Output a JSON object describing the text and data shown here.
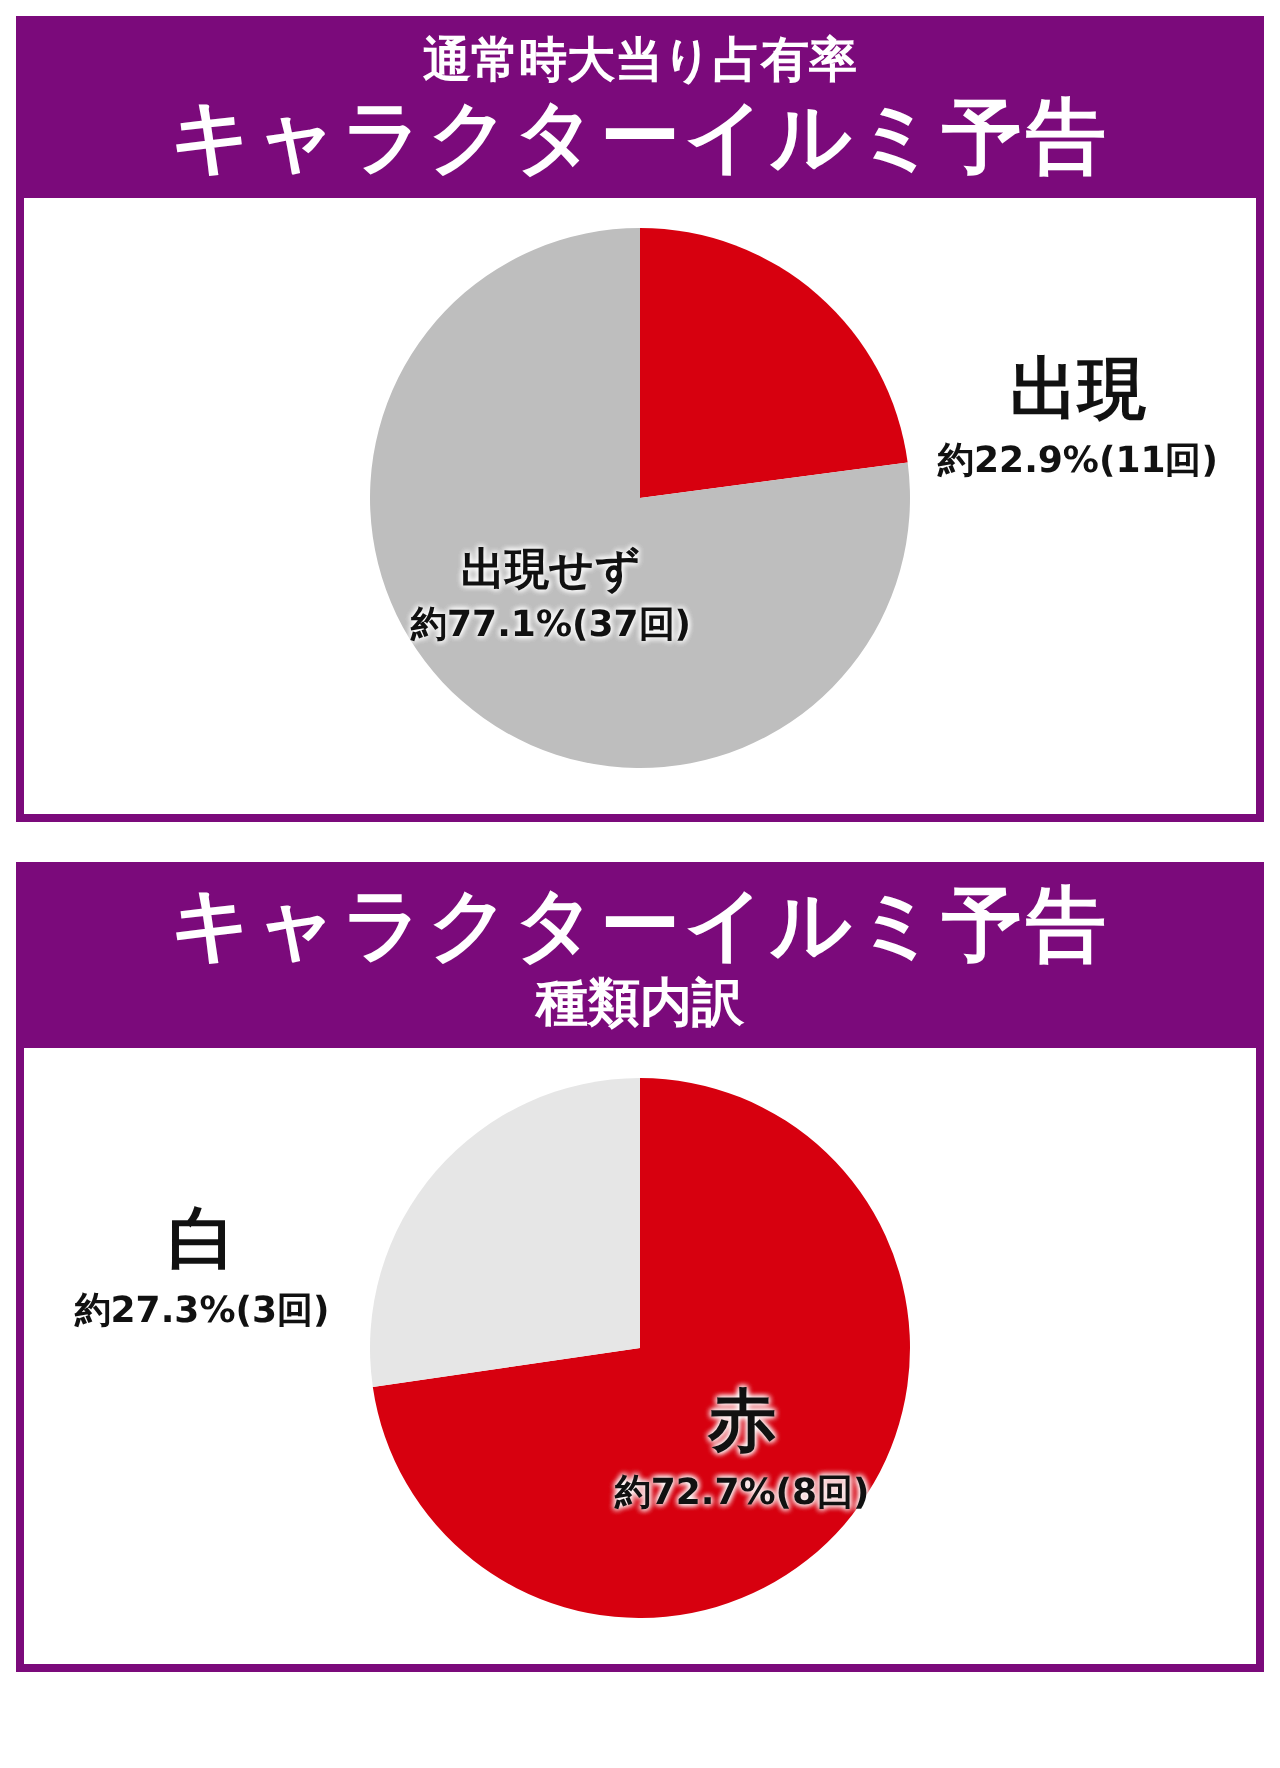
{
  "chart_data": [
    {
      "type": "pie",
      "title": "通常時大当り占有率",
      "subtitle": "キャラクターイルミ予告",
      "categories": [
        "出現",
        "出現せず"
      ],
      "values": [
        22.9,
        77.1
      ],
      "colors": [
        "#d7000f",
        "#bebebe"
      ],
      "value_labels": [
        "約22.9%(11回)",
        "約77.1%(37回)"
      ]
    },
    {
      "type": "pie",
      "title": "キャラクターイルミ予告",
      "subtitle": "種類内訳",
      "categories": [
        "赤",
        "白"
      ],
      "values": [
        72.7,
        27.3
      ],
      "colors": [
        "#d7000f",
        "#e6e6e6"
      ],
      "value_labels": [
        "約72.7%(8回)",
        "約27.3%(3回)"
      ]
    }
  ]
}
